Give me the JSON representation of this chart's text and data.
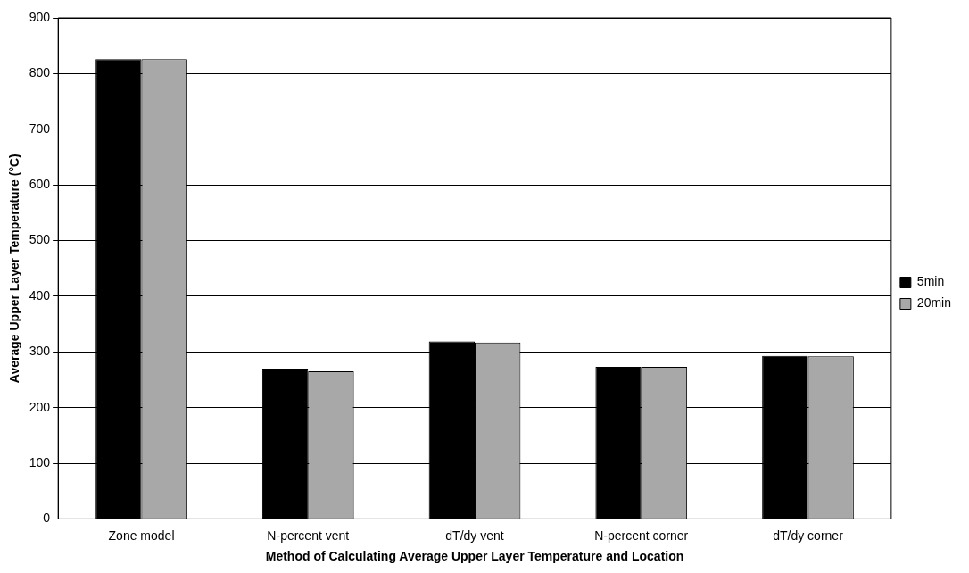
{
  "chart_data": {
    "type": "bar",
    "xlabel": "Method of Calculating Average Upper Layer Temperature and Location",
    "ylabel": "Average Upper Layer Temperature (°C)",
    "categories": [
      "Zone model",
      "N-percent vent",
      "dT/dy vent",
      "N-percent corner",
      "dT/dy corner"
    ],
    "series": [
      {
        "name": "5min",
        "color": "#000000",
        "values": [
          826,
          270,
          319,
          273,
          293
        ]
      },
      {
        "name": "20min",
        "color": "#a8a8a8",
        "values": [
          826,
          265,
          317,
          273,
          292
        ]
      }
    ],
    "ylim": [
      0,
      900
    ],
    "yticks": [
      0,
      100,
      200,
      300,
      400,
      500,
      600,
      700,
      800,
      900
    ],
    "grid": "y",
    "legend": "right"
  }
}
